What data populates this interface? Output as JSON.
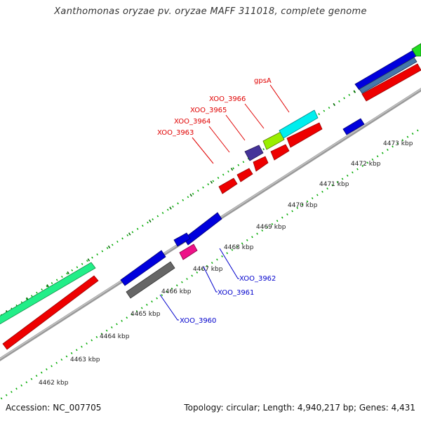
{
  "title": "Xanthomonas oryzae pv. oryzae MAFF 311018, complete genome",
  "footer": {
    "accession": "Accession: NC_007705",
    "summary": "Topology: circular; Length: 4,940,217 bp; Genes: 4,431"
  },
  "axis_labels": [
    "4462 kbp",
    "4463 kbp",
    "4464 kbp",
    "4465 kbp",
    "4466 kbp",
    "4467 kbp",
    "4468 kbp",
    "4469 kbp",
    "4470 kbp",
    "4471 kbp",
    "4472 kbp",
    "4473 kbp"
  ],
  "top_labels": [
    "gpsA",
    "XOO_3966",
    "XOO_3965",
    "XOO_3964",
    "XOO_3963"
  ],
  "bottom_labels": [
    "XOO_3962",
    "XOO_3961",
    "XOO_3960"
  ],
  "colors": {
    "top_label": "#e00000",
    "bottom_label": "#0000cc",
    "backbone": "#888888",
    "tick": "#006600",
    "red": "#ee0000",
    "blue": "#0000dd",
    "green": "#22ee88",
    "cyan": "#00eeee",
    "lime": "#99ee00",
    "purple": "#443399",
    "magenta": "#ee1188",
    "gray": "#666666"
  }
}
